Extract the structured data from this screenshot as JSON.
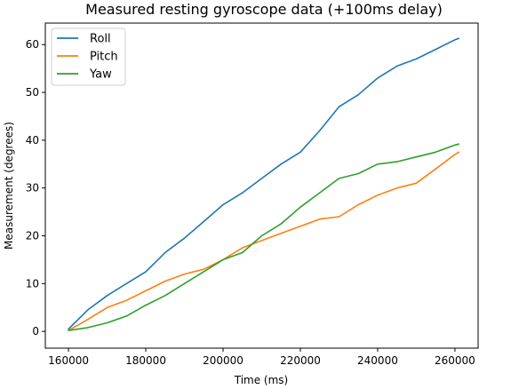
{
  "chart_data": {
    "type": "line",
    "title": "Measured resting gyroscope data (+100ms delay)",
    "xlabel": "Time (ms)",
    "ylabel": "Measurement (degrees)",
    "xlim": [
      154000,
      266000
    ],
    "ylim": [
      -3.5,
      64.5
    ],
    "xticks": [
      160000,
      180000,
      200000,
      220000,
      240000,
      260000
    ],
    "yticks": [
      0,
      10,
      20,
      30,
      40,
      50,
      60
    ],
    "grid": false,
    "legend_position": "top-left",
    "x": [
      160000,
      165000,
      170000,
      175000,
      180000,
      185000,
      190000,
      195000,
      200000,
      205000,
      210000,
      215000,
      220000,
      225000,
      230000,
      235000,
      240000,
      245000,
      250000,
      255000,
      260000,
      261000
    ],
    "series": [
      {
        "name": "Roll",
        "color": "#1f77b4",
        "values": [
          0.5,
          4.5,
          7.5,
          10,
          12.5,
          16.5,
          19.5,
          23,
          26.5,
          29,
          32,
          35,
          37.5,
          42,
          47,
          49.5,
          53,
          55.5,
          57,
          59,
          61,
          61.3
        ]
      },
      {
        "name": "Pitch",
        "color": "#ff7f0e",
        "values": [
          0.2,
          2.5,
          5,
          6.5,
          8.5,
          10.5,
          12,
          13,
          15,
          17.5,
          19,
          20.5,
          22,
          23.5,
          24,
          26.5,
          28.5,
          30,
          31,
          34,
          37,
          37.5
        ]
      },
      {
        "name": "Yaw",
        "color": "#2ca02c",
        "values": [
          0.2,
          0.8,
          1.8,
          3.2,
          5.5,
          7.5,
          10,
          12.5,
          15,
          16.5,
          20,
          22.5,
          26,
          29,
          32,
          33,
          35,
          35.5,
          36.5,
          37.5,
          39,
          39.2
        ]
      }
    ]
  }
}
